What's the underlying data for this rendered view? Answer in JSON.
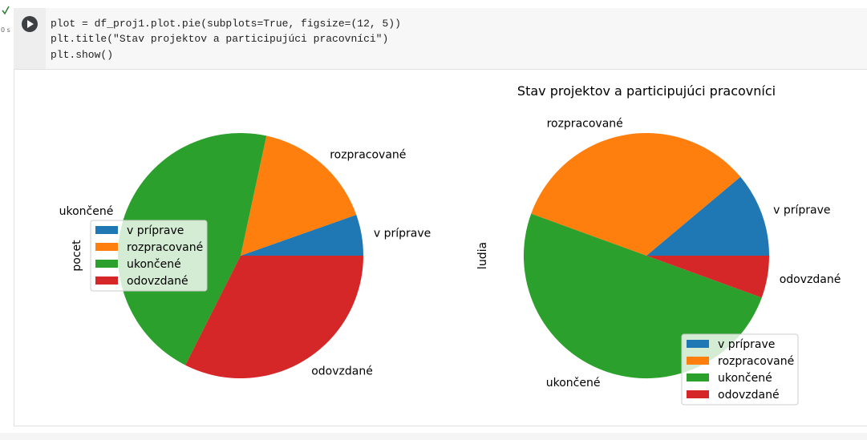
{
  "cell": {
    "status": "0 s",
    "code": [
      "plot = df_proj1.plot.pie(subplots=True, figsize=(12, 5))",
      "plt.title(\"Stav projektov a participujúci pracovníci\")",
      "plt.show()"
    ]
  },
  "chart_data": [
    {
      "type": "pie",
      "ylabel": "pocet",
      "categories": [
        "v príprave",
        "rozpracované",
        "ukončené",
        "odovzdané"
      ],
      "values": [
        2,
        6,
        17,
        12
      ],
      "colors": [
        "#1f77b4",
        "#ff7f0e",
        "#2ca02c",
        "#d62728"
      ],
      "legend": "center left"
    },
    {
      "type": "pie",
      "title": "Stav projektov a participujúci pracovníci",
      "ylabel": "ludia",
      "categories": [
        "v príprave",
        "rozpracované",
        "ukončené",
        "odovzdané"
      ],
      "values": [
        2,
        6,
        9,
        1
      ],
      "colors": [
        "#1f77b4",
        "#ff7f0e",
        "#2ca02c",
        "#d62728"
      ],
      "legend": "lower right"
    }
  ]
}
